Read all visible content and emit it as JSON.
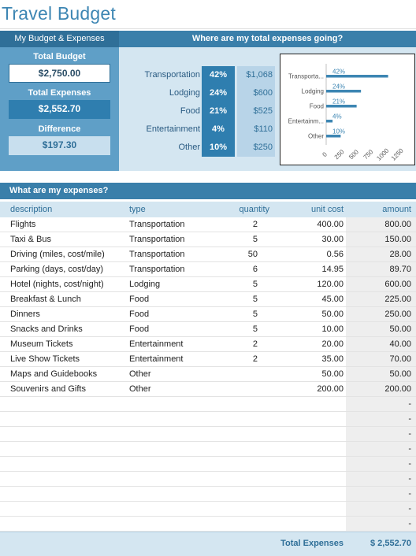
{
  "title": "Travel Budget",
  "budget": {
    "header": "My Budget & Expenses",
    "total_budget_label": "Total Budget",
    "total_budget_value": "$2,750.00",
    "total_expenses_label": "Total Expenses",
    "total_expenses_value": "$2,552.70",
    "difference_label": "Difference",
    "difference_value": "$197.30"
  },
  "breakdown": {
    "header": "Where are my total expenses going?",
    "categories": [
      {
        "name": "Transportation",
        "pct": "42%",
        "amount": "$1,068"
      },
      {
        "name": "Lodging",
        "pct": "24%",
        "amount": "$600"
      },
      {
        "name": "Food",
        "pct": "21%",
        "amount": "$525"
      },
      {
        "name": "Entertainment",
        "pct": "4%",
        "amount": "$110"
      },
      {
        "name": "Other",
        "pct": "10%",
        "amount": "$250"
      }
    ]
  },
  "chart_data": {
    "type": "bar",
    "orientation": "horizontal",
    "categories": [
      "Transporta...",
      "Lodging",
      "Food",
      "Entertainm...",
      "Other"
    ],
    "values": [
      1068,
      600,
      525,
      110,
      250
    ],
    "data_labels": [
      "42%",
      "24%",
      "21%",
      "4%",
      "10%"
    ],
    "xlim": [
      0,
      1250
    ],
    "xticks": [
      "0",
      "250",
      "500",
      "750",
      "1000",
      "1250"
    ],
    "bar_color": "#3d86b3"
  },
  "expenses": {
    "header": "What are my expenses?",
    "columns": [
      "description",
      "type",
      "quantity",
      "unit cost",
      "amount"
    ],
    "rows": [
      [
        "Flights",
        "Transportation",
        "2",
        "400.00",
        "800.00"
      ],
      [
        "Taxi & Bus",
        "Transportation",
        "5",
        "30.00",
        "150.00"
      ],
      [
        "Driving (miles, cost/mile)",
        "Transportation",
        "50",
        "0.56",
        "28.00"
      ],
      [
        "Parking (days, cost/day)",
        "Transportation",
        "6",
        "14.95",
        "89.70"
      ],
      [
        "Hotel (nights, cost/night)",
        "Lodging",
        "5",
        "120.00",
        "600.00"
      ],
      [
        "Breakfast & Lunch",
        "Food",
        "5",
        "45.00",
        "225.00"
      ],
      [
        "Dinners",
        "Food",
        "5",
        "50.00",
        "250.00"
      ],
      [
        "Snacks and Drinks",
        "Food",
        "5",
        "10.00",
        "50.00"
      ],
      [
        "Museum Tickets",
        "Entertainment",
        "2",
        "20.00",
        "40.00"
      ],
      [
        "Live Show Tickets",
        "Entertainment",
        "2",
        "35.00",
        "70.00"
      ],
      [
        "Maps and Guidebooks",
        "Other",
        "",
        "50.00",
        "50.00"
      ],
      [
        "Souvenirs and Gifts",
        "Other",
        "",
        "200.00",
        "200.00"
      ],
      [
        "",
        "",
        "",
        "",
        "-"
      ],
      [
        "",
        "",
        "",
        "",
        "-"
      ],
      [
        "",
        "",
        "",
        "",
        "-"
      ],
      [
        "",
        "",
        "",
        "",
        "-"
      ],
      [
        "",
        "",
        "",
        "",
        "-"
      ],
      [
        "",
        "",
        "",
        "",
        "-"
      ],
      [
        "",
        "",
        "",
        "",
        "-"
      ],
      [
        "",
        "",
        "",
        "",
        "-"
      ],
      [
        "",
        "",
        "",
        "",
        "-"
      ]
    ],
    "footer_label": "Total Expenses",
    "footer_value": "$ 2,552.70"
  },
  "colors": {
    "accent": "#3a7faa",
    "dark_accent": "#2f6f98",
    "light_panel": "#d4e6f1"
  }
}
